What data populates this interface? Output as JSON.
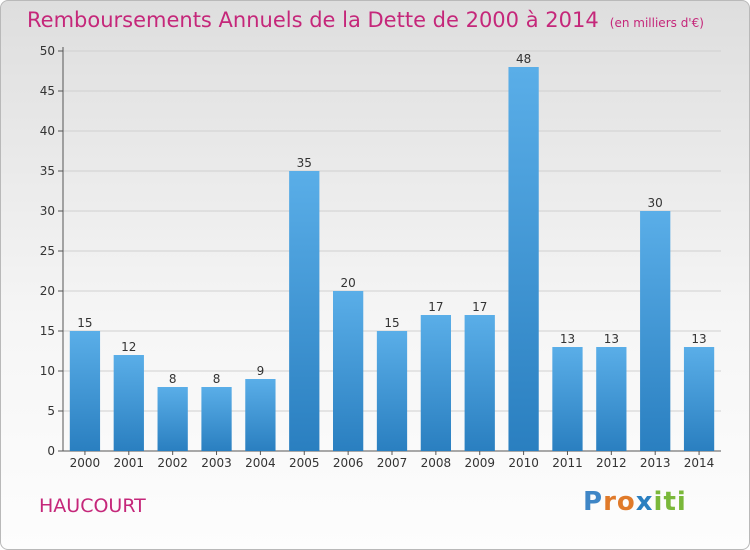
{
  "chart_data": {
    "type": "bar",
    "title": "Remboursements Annuels de la Dette de 2000 à 2014",
    "unit_note": "(en milliers d'€)",
    "categories": [
      "2000",
      "2001",
      "2002",
      "2003",
      "2004",
      "2005",
      "2006",
      "2007",
      "2008",
      "2009",
      "2010",
      "2011",
      "2012",
      "2013",
      "2014"
    ],
    "values": [
      15,
      12,
      8,
      8,
      9,
      35,
      20,
      15,
      17,
      17,
      48,
      13,
      13,
      30,
      13
    ],
    "ylim": [
      0,
      50
    ],
    "yticks": [
      0,
      5,
      10,
      15,
      20,
      25,
      30,
      35,
      40,
      45,
      50
    ],
    "grid": true,
    "bar_color_top": "#5aaee8",
    "bar_color_bottom": "#2a7fc0",
    "title_color": "#c5277a"
  },
  "commune_name": "HAUCOURT",
  "logo": {
    "letters": [
      "P",
      "r",
      "o",
      "x",
      "i",
      "t",
      "i"
    ],
    "colors": [
      "#3f86c6",
      "#e07a2a",
      "#e07a2a",
      "#2a7fc0",
      "#7ab83a",
      "#7ab83a",
      "#7ab83a"
    ]
  }
}
